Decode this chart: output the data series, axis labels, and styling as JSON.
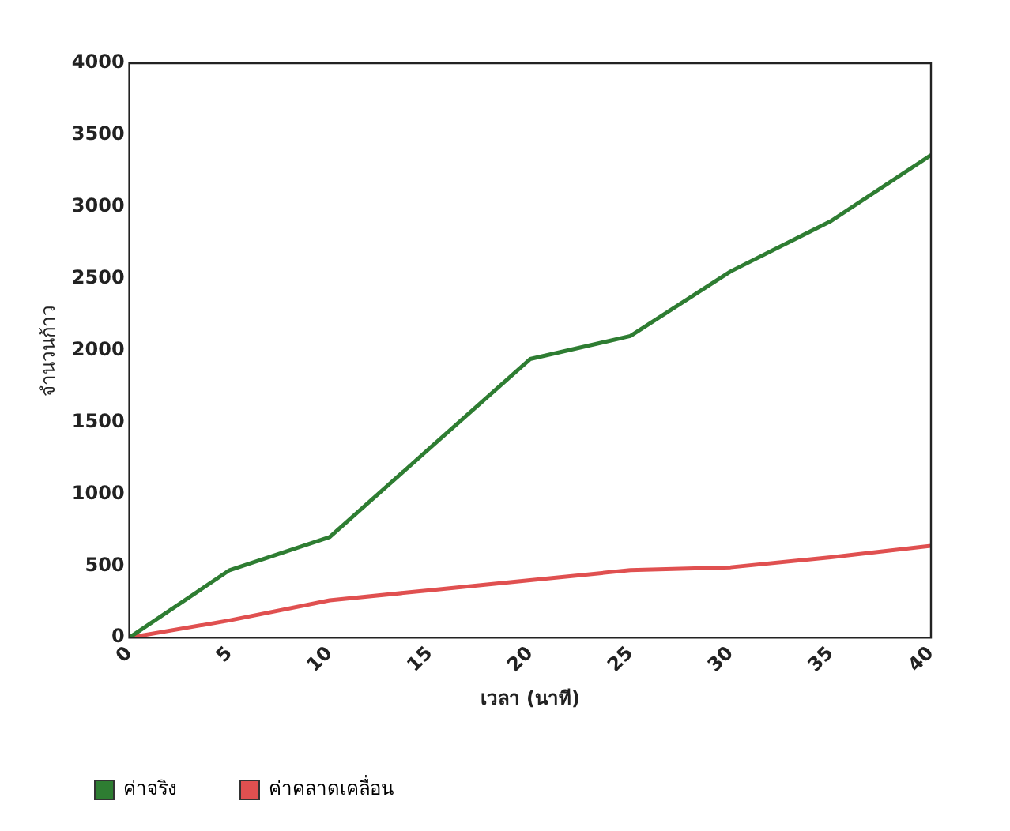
{
  "chart_data": {
    "type": "line",
    "xlabel": "เวลา (นาที)",
    "ylabel": "จำนวนก้าว",
    "x": [
      0,
      5,
      10,
      15,
      20,
      25,
      30,
      35,
      40
    ],
    "series": [
      {
        "name": "ค่าจริง",
        "color": "#2e7d32",
        "values": [
          0,
          470,
          700,
          1320,
          1940,
          2100,
          2550,
          2900,
          3360
        ]
      },
      {
        "name": "ค่าคลาดเคลื่อน",
        "color": "#e05050",
        "values": [
          0,
          120,
          260,
          330,
          400,
          470,
          490,
          560,
          640
        ]
      }
    ],
    "xlim": [
      0,
      40
    ],
    "xticks": [
      0,
      5,
      10,
      15,
      20,
      25,
      30,
      35,
      40
    ],
    "ylim": [
      0,
      4000
    ],
    "yticks": [
      0,
      500,
      1000,
      1500,
      2000,
      2500,
      3000,
      3500,
      4000
    ],
    "grid": false,
    "legend": "bottom left",
    "marker": "none",
    "line_style": "solid"
  }
}
